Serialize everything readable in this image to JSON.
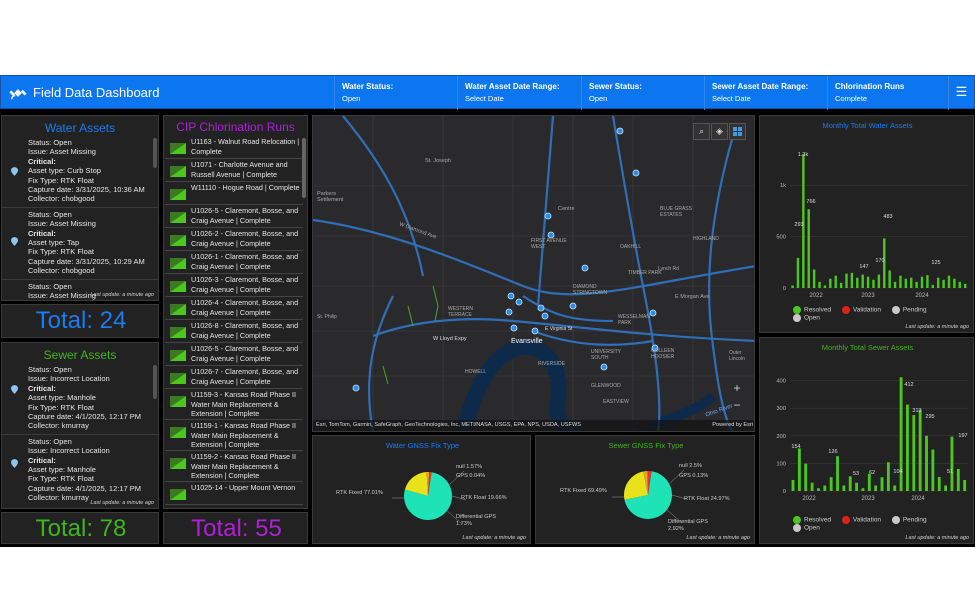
{
  "header": {
    "title": "Field Data Dashboard",
    "filters": [
      {
        "label": "Water Status:",
        "value": "Open"
      },
      {
        "label": "Water Asset Date Range:",
        "value": "Select Date"
      },
      {
        "label": "Sewer Status:",
        "value": "Open"
      },
      {
        "label": "Sewer Asset Date Range:",
        "value": "Select Date"
      },
      {
        "label": "Chlorination Runs",
        "value": "Complete"
      }
    ],
    "menu_icon": "hamburger-icon"
  },
  "water_assets": {
    "title": "Water Assets",
    "records": [
      {
        "status": "Status: Open",
        "issue": "Issue: Asset Missing",
        "critical": "Critical:",
        "type": "Asset type: Curb Stop",
        "fix": "Fix Type: RTK Float",
        "date": "Capture date: 3/31/2025, 10:36 AM",
        "collector": "Collector: chobgood"
      },
      {
        "status": "Status: Open",
        "issue": "Issue: Asset Missing",
        "critical": "Critical:",
        "type": "Asset type: Tap",
        "fix": "Fix Type: RTK Float",
        "date": "Capture date: 3/31/2025, 10:29 AM",
        "collector": "Collector: chobgood"
      },
      {
        "status": "Status: Open",
        "issue": "Issue: Asset Missing"
      }
    ],
    "update": "Last update: a minute ago",
    "total": "Total: 24"
  },
  "sewer_assets": {
    "title": "Sewer Assets",
    "records": [
      {
        "status": "Status: Open",
        "issue": "Issue: Incorrect Location",
        "critical": "Critical:",
        "type": "Asset type: Manhole",
        "fix": "Fix Type: RTK Float",
        "date": "Capture date: 4/1/2025, 12:17 PM",
        "collector": "Collector: kmurray"
      },
      {
        "status": "Status: Open",
        "issue": "Issue: Incorrect Location",
        "critical": "Critical:",
        "type": "Asset type: Manhole",
        "fix": "Fix Type: RTK Float",
        "date": "Capture date: 4/1/2025, 12:17 PM",
        "collector": "Collector: kmurray"
      }
    ],
    "update": "Last update: a minute ago",
    "total": "Total: 78"
  },
  "cip": {
    "title": "CIP Chlorination Runs",
    "items": [
      "U1163 - Walnut Road Relocation | Complete",
      "U1071 - Charlotte Avenue and Russell Avenue | Complete",
      "W11110 - Hogue Road | Complete",
      "U1026-5 - Claremont, Bosse, and Craig Avenue | Complete",
      "U1026-2 - Claremont, Bosse, and Craig Avenue | Complete",
      "U1026-1 - Claremont, Bosse, and Craig Avenue | Complete",
      "U1026-3 - Claremont, Bosse, and Craig Avenue | Complete",
      "U1026-4 - Claremont, Bosse, and Craig Avenue | Complete",
      "U1026-8 - Claremont, Bosse, and Craig Avenue | Complete",
      "U1026-5 - Claremont, Bosse, and Craig Avenue | Complete",
      "U1026-7 - Claremont, Bosse, and Craig Avenue | Complete",
      "U1159-3 - Kansas Road Phase II Water Main Replacement & Extension | Complete",
      "U1159-1 - Kansas Road Phase II Water Main Replacement & Extension | Complete",
      "U1159-2 - Kansas Road Phase II Water Main Replacement & Extension | Complete",
      "U1025-14 - Upper Mount Vernon"
    ],
    "total": "Total: 55"
  },
  "map": {
    "attribution": "Esri, TomTom, Garmin, SafeGraph, GeoTechnologies, Inc, METI/NASA, USGS, EPA, NPS, USDA, USFWS",
    "powered": "Powered by Esri",
    "zoom_in": "+",
    "zoom_out": "−",
    "labels": [
      "St. Joseph",
      "Parkers Settlement",
      "W Diamond Ave",
      "Centre",
      "FIRST AVENUE WEST",
      "OAKHILL",
      "BLUE GRASS ESTATES",
      "HIGHLAND",
      "DIAMOND STRINGTOWN",
      "TIMBER PARK",
      "Lynch Rd",
      "E Morgan Ave",
      "WESTERN TERRACE",
      "WESSELMAN PARK",
      "E Virginia St",
      "W Lloyd Expy",
      "Evansville",
      "UNIVERSITY SOUTH",
      "COLLEEN HOOSIER",
      "Outer Lincoln",
      "HOWELL",
      "RIVERSIDE",
      "GLENWOOD",
      "EASTVIEW",
      "St. Philip",
      "Ohio River"
    ]
  },
  "water_monthly": {
    "title": "Monthly Total Water Assets",
    "update": "Last update: a minute ago"
  },
  "sewer_monthly": {
    "title": "Monthly Total Sewer Assets",
    "update": "Last update: a minute ago"
  },
  "water_gnss": {
    "title": "Water GNSS Fix Type",
    "labels": [
      "RTK Fixed 77.01%",
      "null 1.57%",
      "GPS 0.04%",
      "RTK Float 19.66%",
      "Differential GPS",
      "1.73%"
    ],
    "update": "Last update: a minute ago"
  },
  "sewer_gnss": {
    "title": "Sewer GNSS Fix Type",
    "labels": [
      "RTK Fixed 69.49%",
      "null 2.5%",
      "GPS 0.13%",
      "RTK Float 24.97%",
      "Differential GPS",
      "2.92%"
    ],
    "update": "Last update: a minute ago"
  },
  "legend": [
    "Resolved",
    "Validation",
    "Pending",
    "Open"
  ],
  "colors": {
    "header": "#0b76f0",
    "water_title": "#1a7cf2",
    "sewer_title": "#3fb51f",
    "cip": "#b21fd8",
    "green": "#4cc71f",
    "red": "#e0201b",
    "grey": "#c9c9c9",
    "pie_teal": "#1de3b7",
    "pie_yellow": "#e8e21c"
  },
  "chart_data": [
    {
      "type": "bar",
      "title": "Monthly Total Water Assets",
      "x_ticks": [
        "2022",
        "2023",
        "2024"
      ],
      "y_ticks": [
        "0",
        "500",
        "1k"
      ],
      "ylim": [
        0,
        1400
      ],
      "series": [
        {
          "name": "Resolved",
          "values": [
            25,
            293,
            1300,
            766,
            180,
            60,
            25,
            90,
            120,
            50,
            140,
            147,
            100,
            130,
            110,
            80,
            130,
            483,
            170,
            60,
            120,
            90,
            100,
            60,
            110,
            125,
            30,
            100,
            80,
            120,
            90,
            60,
            40
          ]
        }
      ],
      "data_labels": [
        "1.3k",
        "766",
        "293",
        "483",
        "147",
        "170",
        "125"
      ]
    },
    {
      "type": "bar",
      "title": "Monthly Total Sewer Assets",
      "x_ticks": [
        "2022",
        "2023",
        "2024"
      ],
      "y_ticks": [
        "0",
        "100",
        "200",
        "300",
        "400"
      ],
      "ylim": [
        0,
        460
      ],
      "series": [
        {
          "name": "Resolved",
          "values": [
            40,
            154,
            99,
            30,
            10,
            20,
            50,
            126,
            20,
            53,
            30,
            10,
            62,
            20,
            50,
            104,
            20,
            412,
            313,
            275,
            295,
            200,
            150,
            51,
            20,
            197,
            80,
            40
          ]
        }
      ],
      "data_labels": [
        "154",
        "126",
        "53",
        "62",
        "104",
        "412",
        "313",
        "295",
        "51",
        "197"
      ]
    },
    {
      "type": "pie",
      "title": "Water GNSS Fix Type",
      "categories": [
        "RTK Fixed",
        "RTK Float",
        "Differential GPS",
        "null",
        "GPS"
      ],
      "values": [
        77.01,
        19.66,
        1.73,
        1.57,
        0.04
      ]
    },
    {
      "type": "pie",
      "title": "Sewer GNSS Fix Type",
      "categories": [
        "RTK Fixed",
        "RTK Float",
        "Differential GPS",
        "null",
        "GPS"
      ],
      "values": [
        69.49,
        24.97,
        2.92,
        2.5,
        0.13
      ]
    }
  ]
}
